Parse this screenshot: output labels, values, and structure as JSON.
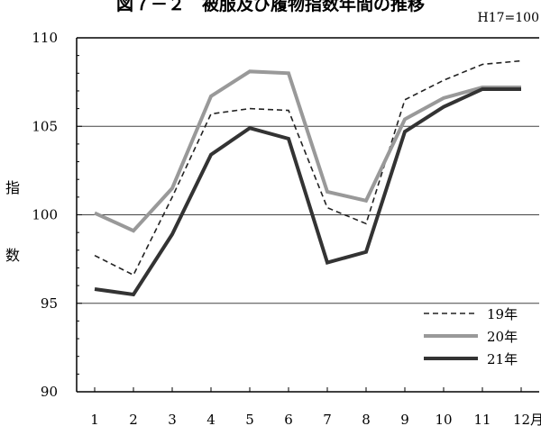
{
  "title": "図７－２　被服及び履物指数年間の推移",
  "unit_note": "H17=100",
  "ylabel_chars": [
    "指",
    "数"
  ],
  "colors": {
    "s19": "#222222",
    "s20": "#999999",
    "s21": "#333333",
    "grid": "#444444"
  },
  "chart_data": {
    "type": "line",
    "title": "図７－２　被服及び履物指数年間の推移",
    "ylabel": "指数",
    "x_labels": [
      "1",
      "2",
      "3",
      "4",
      "5",
      "6",
      "7",
      "8",
      "9",
      "10",
      "11",
      "12月"
    ],
    "ylim": [
      90,
      110
    ],
    "yticks": [
      90,
      95,
      100,
      105,
      110
    ],
    "grid": "horizontal",
    "legend_placement": "bottom-right",
    "series": [
      {
        "name": "19年",
        "style": "dashed",
        "values": [
          97.7,
          96.6,
          101.0,
          105.7,
          106.0,
          105.9,
          100.4,
          99.5,
          106.5,
          107.6,
          108.5,
          108.7
        ]
      },
      {
        "name": "20年",
        "style": "solid-gray",
        "values": [
          100.1,
          99.1,
          101.5,
          106.7,
          108.1,
          108.0,
          101.3,
          100.8,
          105.4,
          106.6,
          107.2,
          107.2
        ]
      },
      {
        "name": "21年",
        "style": "solid-dark",
        "values": [
          95.8,
          95.5,
          98.9,
          103.4,
          104.9,
          104.3,
          97.3,
          97.9,
          104.7,
          106.1,
          107.1,
          107.1
        ]
      }
    ]
  }
}
